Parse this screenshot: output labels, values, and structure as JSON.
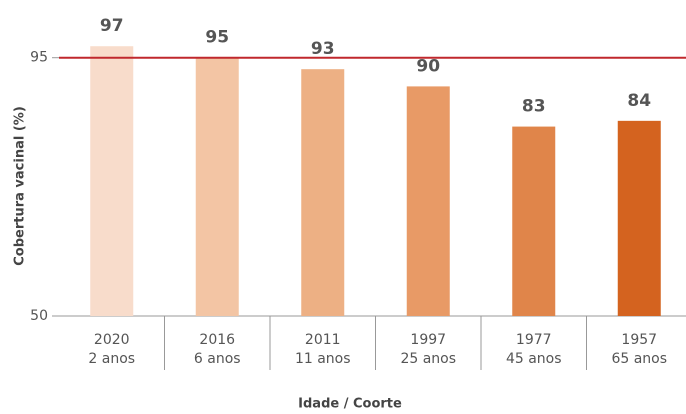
{
  "chart_data": {
    "type": "bar",
    "y_label": "Cobertura vacinal (%)",
    "x_label": "Idade / Coorte",
    "categories": [
      "2020",
      "2016",
      "2011",
      "1997",
      "1977",
      "1957"
    ],
    "category_sublabels": [
      "2 anos",
      "6 anos",
      "11 anos",
      "25 anos",
      "45 anos",
      "65 anos"
    ],
    "values": [
      97,
      95,
      93,
      90,
      83,
      84
    ],
    "colors": [
      "#f8dccb",
      "#f3c5a4",
      "#edb084",
      "#e89a66",
      "#e0854a",
      "#d4631f"
    ],
    "ylim": [
      50,
      100
    ],
    "yticks": [
      50,
      95
    ],
    "reference_line": {
      "value": 95,
      "color": "#c0282d"
    }
  }
}
